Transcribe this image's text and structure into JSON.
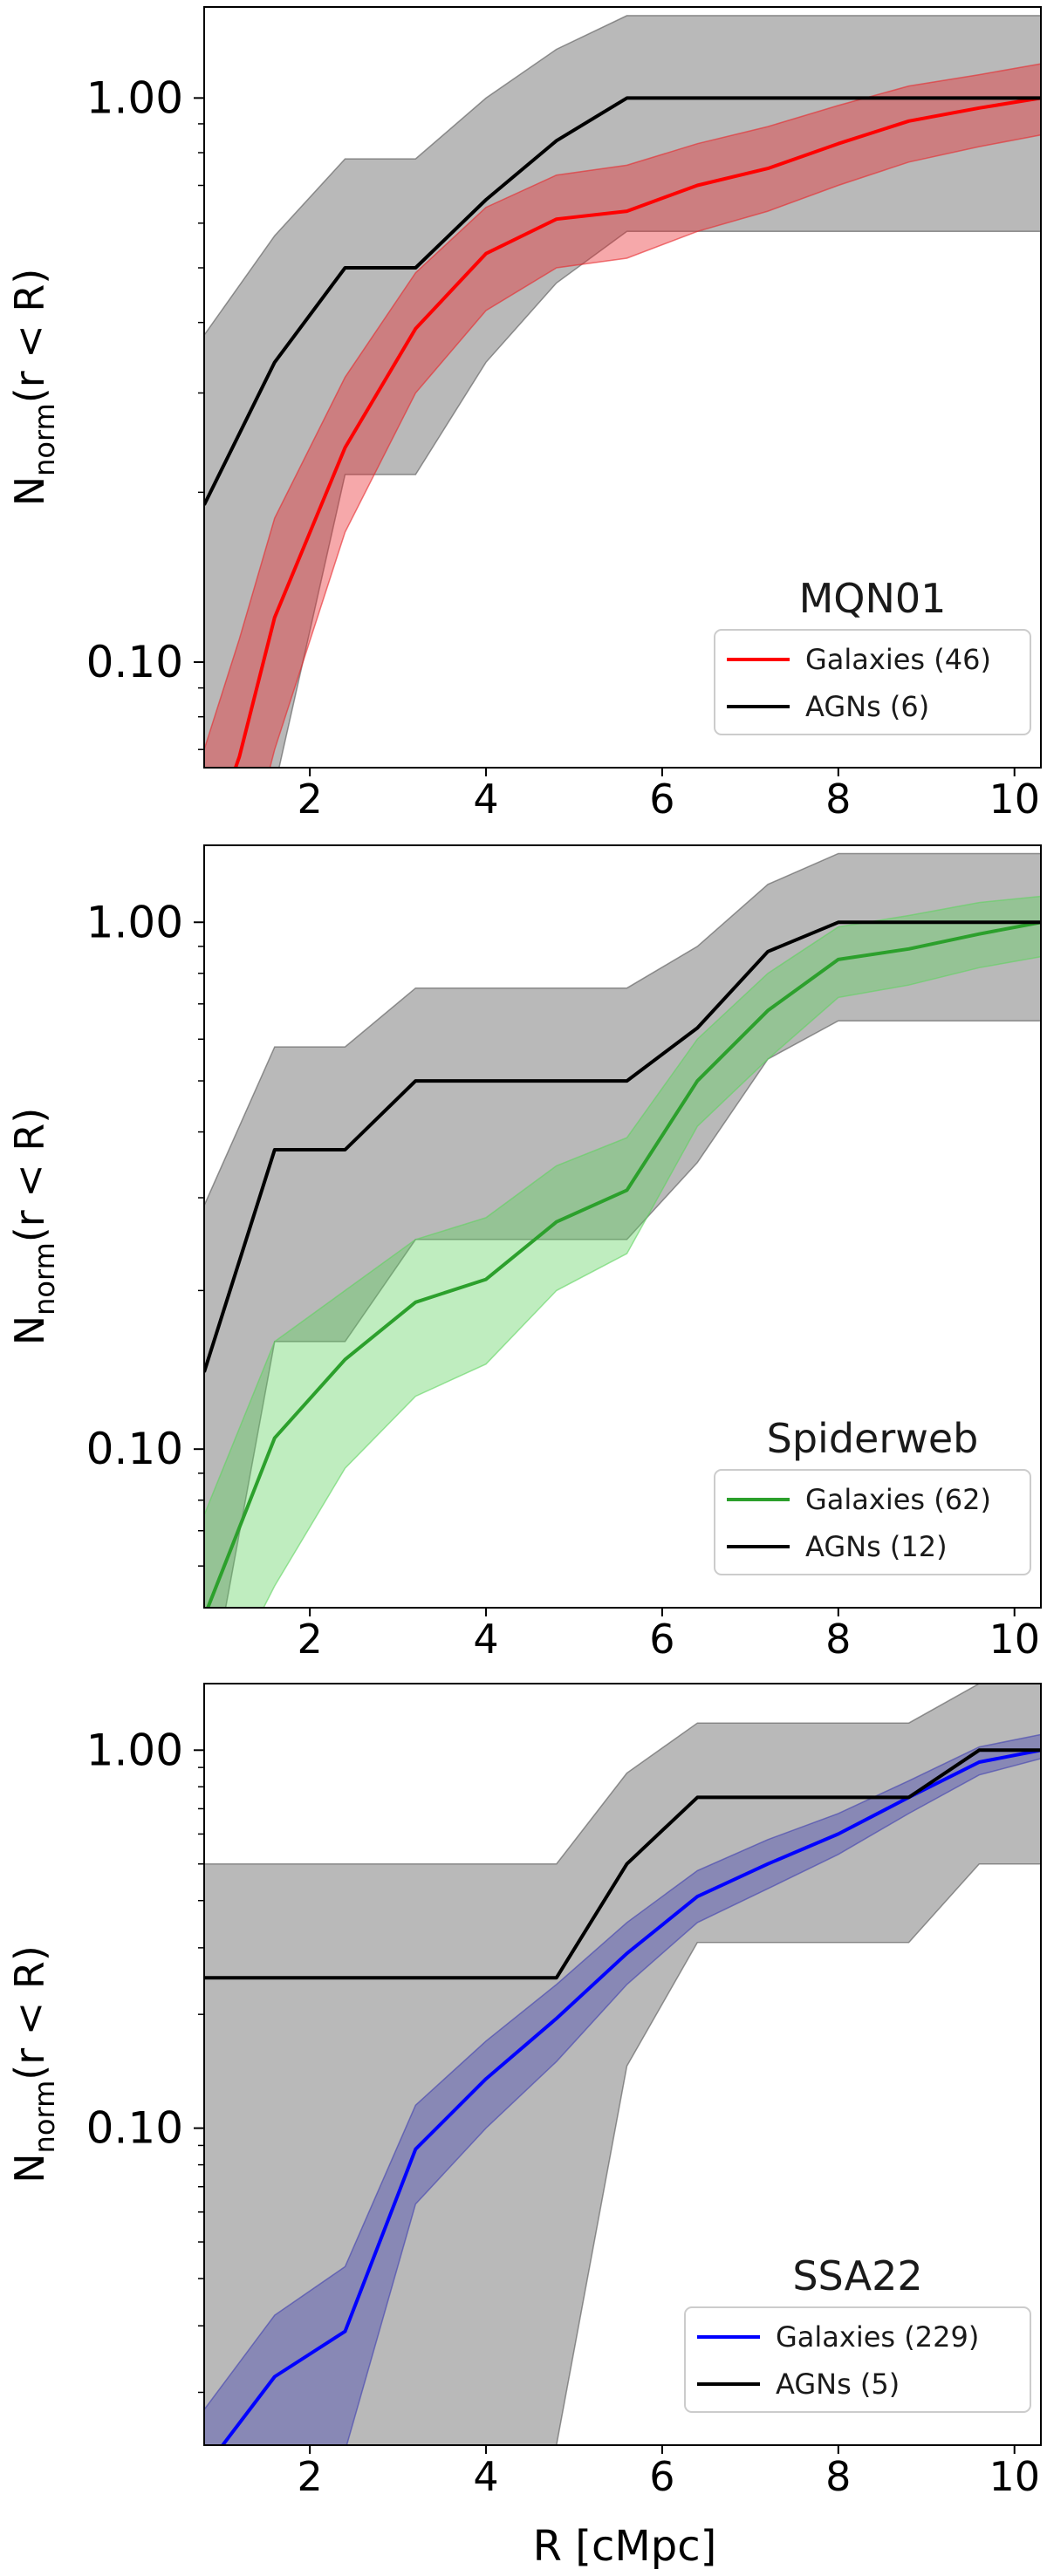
{
  "figure": {
    "xlabel": "R [cMpc]"
  },
  "chart_data": [
    {
      "type": "line",
      "title": "MQN01",
      "ylabel": "N_norm(r < R)",
      "ylabel_main": "N",
      "ylabel_sub": "norm",
      "ylabel_rest": "(r < R)",
      "xlim": [
        0.8,
        10.3
      ],
      "ylim": [
        0.065,
        1.45
      ],
      "yscale": "log",
      "xticks": [
        2,
        4,
        6,
        8,
        10
      ],
      "xtick_labels": [
        "2",
        "4",
        "6",
        "8",
        "10"
      ],
      "yticks": [
        0.1,
        1.0
      ],
      "ytick_labels": [
        "0.10",
        "1.00"
      ],
      "legend_loc": "lower-right",
      "series": [
        {
          "name": "Galaxies (46)",
          "color": "#ff0000",
          "band_color": "#e8262a",
          "x": [
            0.8,
            1.2,
            1.6,
            2.4,
            3.2,
            4.0,
            4.8,
            5.6,
            6.4,
            7.2,
            8.0,
            8.8,
            9.6,
            10.3
          ],
          "y": [
            0.045,
            0.068,
            0.12,
            0.24,
            0.39,
            0.53,
            0.61,
            0.63,
            0.7,
            0.75,
            0.83,
            0.91,
            0.96,
            1.0
          ],
          "lower": [
            0.025,
            0.04,
            0.07,
            0.17,
            0.3,
            0.42,
            0.5,
            0.52,
            0.58,
            0.63,
            0.7,
            0.77,
            0.82,
            0.86
          ],
          "upper": [
            0.07,
            0.11,
            0.18,
            0.32,
            0.49,
            0.64,
            0.73,
            0.76,
            0.83,
            0.89,
            0.97,
            1.05,
            1.1,
            1.15
          ]
        },
        {
          "name": "AGNs (6)",
          "color": "#000000",
          "band_color": "#808080",
          "x": [
            0.8,
            1.6,
            2.4,
            3.2,
            4.0,
            4.8,
            5.6,
            6.4,
            7.2,
            8.0,
            8.8,
            9.6,
            10.3
          ],
          "y": [
            0.19,
            0.34,
            0.5,
            0.5,
            0.66,
            0.84,
            1.0,
            1.0,
            1.0,
            1.0,
            1.0,
            1.0,
            1.0
          ],
          "lower": [
            0.03,
            0.06,
            0.215,
            0.215,
            0.34,
            0.47,
            0.58,
            0.58,
            0.58,
            0.58,
            0.58,
            0.58,
            0.58
          ],
          "upper": [
            0.38,
            0.57,
            0.78,
            0.78,
            1.0,
            1.22,
            1.4,
            1.4,
            1.4,
            1.4,
            1.4,
            1.4,
            1.4
          ]
        }
      ]
    },
    {
      "type": "line",
      "title": "Spiderweb",
      "ylabel": "N_norm(r < R)",
      "ylabel_main": "N",
      "ylabel_sub": "norm",
      "ylabel_rest": "(r < R)",
      "xlim": [
        0.8,
        10.3
      ],
      "ylim": [
        0.05,
        1.4
      ],
      "yscale": "log",
      "xticks": [
        2,
        4,
        6,
        8,
        10
      ],
      "xtick_labels": [
        "2",
        "4",
        "6",
        "8",
        "10"
      ],
      "yticks": [
        0.1,
        1.0
      ],
      "ytick_labels": [
        "0.10",
        "1.00"
      ],
      "legend_loc": "lower-right",
      "series": [
        {
          "name": "Galaxies (62)",
          "color": "#2ca02c",
          "band_color": "#5fd35f",
          "x": [
            0.8,
            1.6,
            2.4,
            3.2,
            4.0,
            4.8,
            5.6,
            6.4,
            7.2,
            8.0,
            8.8,
            9.6,
            10.3
          ],
          "y": [
            0.048,
            0.105,
            0.148,
            0.19,
            0.21,
            0.27,
            0.31,
            0.5,
            0.68,
            0.85,
            0.89,
            0.95,
            1.0
          ],
          "lower": [
            0.03,
            0.055,
            0.092,
            0.126,
            0.145,
            0.2,
            0.235,
            0.41,
            0.55,
            0.72,
            0.76,
            0.82,
            0.86
          ],
          "upper": [
            0.075,
            0.16,
            0.2,
            0.25,
            0.275,
            0.345,
            0.39,
            0.6,
            0.8,
            0.98,
            1.03,
            1.09,
            1.12
          ]
        },
        {
          "name": "AGNs (12)",
          "color": "#000000",
          "band_color": "#808080",
          "x": [
            0.8,
            1.6,
            2.4,
            3.2,
            4.0,
            4.8,
            5.6,
            6.4,
            7.2,
            8.0,
            8.8,
            9.6,
            10.3
          ],
          "y": [
            0.14,
            0.37,
            0.37,
            0.5,
            0.5,
            0.5,
            0.5,
            0.63,
            0.88,
            1.0,
            1.0,
            1.0,
            1.0
          ],
          "lower": [
            0.03,
            0.16,
            0.16,
            0.25,
            0.25,
            0.25,
            0.25,
            0.35,
            0.55,
            0.65,
            0.65,
            0.65,
            0.65
          ],
          "upper": [
            0.29,
            0.58,
            0.58,
            0.75,
            0.75,
            0.75,
            0.75,
            0.9,
            1.18,
            1.35,
            1.35,
            1.35,
            1.35
          ]
        }
      ]
    },
    {
      "type": "line",
      "title": "SSA22",
      "ylabel": "N_norm(r < R)",
      "ylabel_main": "N",
      "ylabel_sub": "norm",
      "ylabel_rest": "(r < R)",
      "xlim": [
        0.8,
        10.3
      ],
      "ylim": [
        0.0145,
        1.5
      ],
      "yscale": "log",
      "xticks": [
        2,
        4,
        6,
        8,
        10
      ],
      "xtick_labels": [
        "2",
        "4",
        "6",
        "8",
        "10"
      ],
      "yticks": [
        0.1,
        1.0
      ],
      "ytick_labels": [
        "0.10",
        "1.00"
      ],
      "legend_loc": "lower-right",
      "series": [
        {
          "name": "Galaxies (229)",
          "color": "#0000ff",
          "band_color": "#3f3fb0",
          "x": [
            0.8,
            1.6,
            2.4,
            3.2,
            4.0,
            4.8,
            5.6,
            6.4,
            7.2,
            8.0,
            8.8,
            9.6,
            10.3
          ],
          "y": [
            0.0125,
            0.022,
            0.029,
            0.088,
            0.135,
            0.195,
            0.29,
            0.41,
            0.5,
            0.6,
            0.75,
            0.93,
            1.0
          ],
          "lower": [
            0.008,
            0.013,
            0.014,
            0.063,
            0.1,
            0.15,
            0.24,
            0.35,
            0.43,
            0.53,
            0.68,
            0.86,
            0.95
          ],
          "upper": [
            0.018,
            0.032,
            0.043,
            0.115,
            0.17,
            0.24,
            0.35,
            0.48,
            0.58,
            0.68,
            0.83,
            1.02,
            1.1
          ]
        },
        {
          "name": "AGNs (5)",
          "color": "#000000",
          "band_color": "#808080",
          "x": [
            0.8,
            1.6,
            2.4,
            3.2,
            4.0,
            4.8,
            5.6,
            6.4,
            7.2,
            8.0,
            8.8,
            9.6,
            10.3
          ],
          "y": [
            0.25,
            0.25,
            0.25,
            0.25,
            0.25,
            0.25,
            0.5,
            0.75,
            0.75,
            0.75,
            0.75,
            1.0,
            1.0
          ],
          "lower": [
            0.0145,
            0.0145,
            0.0145,
            0.0145,
            0.0145,
            0.0145,
            0.146,
            0.31,
            0.31,
            0.31,
            0.31,
            0.5,
            0.5
          ],
          "upper": [
            0.5,
            0.5,
            0.5,
            0.5,
            0.5,
            0.5,
            0.87,
            1.18,
            1.18,
            1.18,
            1.18,
            1.5,
            1.5
          ]
        }
      ]
    }
  ]
}
